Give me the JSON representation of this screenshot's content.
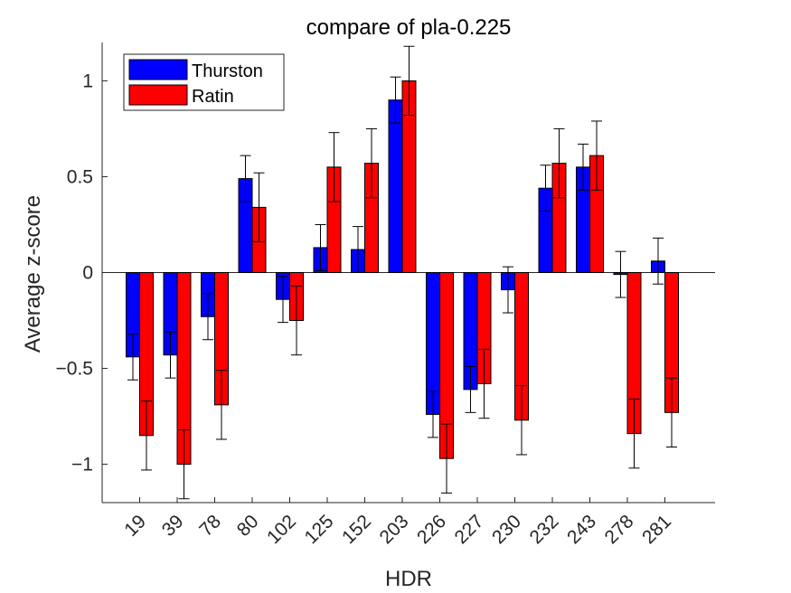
{
  "chart_data": {
    "type": "bar",
    "title": "compare of pla-0.225",
    "xlabel": "HDR",
    "ylabel": "Average z-score",
    "categories": [
      "19",
      "39",
      "78",
      "80",
      "102",
      "125",
      "152",
      "203",
      "226",
      "227",
      "230",
      "232",
      "243",
      "278",
      "281"
    ],
    "ylim": [
      -1.2,
      1.2
    ],
    "yticks": [
      -1,
      -0.5,
      0,
      0.5,
      1
    ],
    "ytick_labels": [
      "−1",
      "−0.5",
      "0",
      "0.5",
      "1"
    ],
    "legend_position": "top-left",
    "series": [
      {
        "name": "Thurston",
        "color": "#0000ff",
        "values": [
          -0.44,
          -0.43,
          -0.23,
          0.49,
          -0.14,
          0.13,
          0.12,
          0.9,
          -0.74,
          -0.61,
          -0.09,
          0.44,
          0.55,
          -0.01,
          0.06
        ],
        "errors": [
          0.12,
          0.12,
          0.12,
          0.12,
          0.12,
          0.12,
          0.12,
          0.12,
          0.12,
          0.12,
          0.12,
          0.12,
          0.12,
          0.12,
          0.12
        ]
      },
      {
        "name": "Ratin",
        "color": "#ff0000",
        "values": [
          -0.85,
          -1.0,
          -0.69,
          0.34,
          -0.25,
          0.55,
          0.57,
          1.0,
          -0.97,
          -0.58,
          -0.77,
          0.57,
          0.61,
          -0.84,
          -0.73
        ],
        "errors": [
          0.18,
          0.18,
          0.18,
          0.18,
          0.18,
          0.18,
          0.18,
          0.18,
          0.18,
          0.18,
          0.18,
          0.18,
          0.18,
          0.18,
          0.18
        ]
      }
    ]
  }
}
